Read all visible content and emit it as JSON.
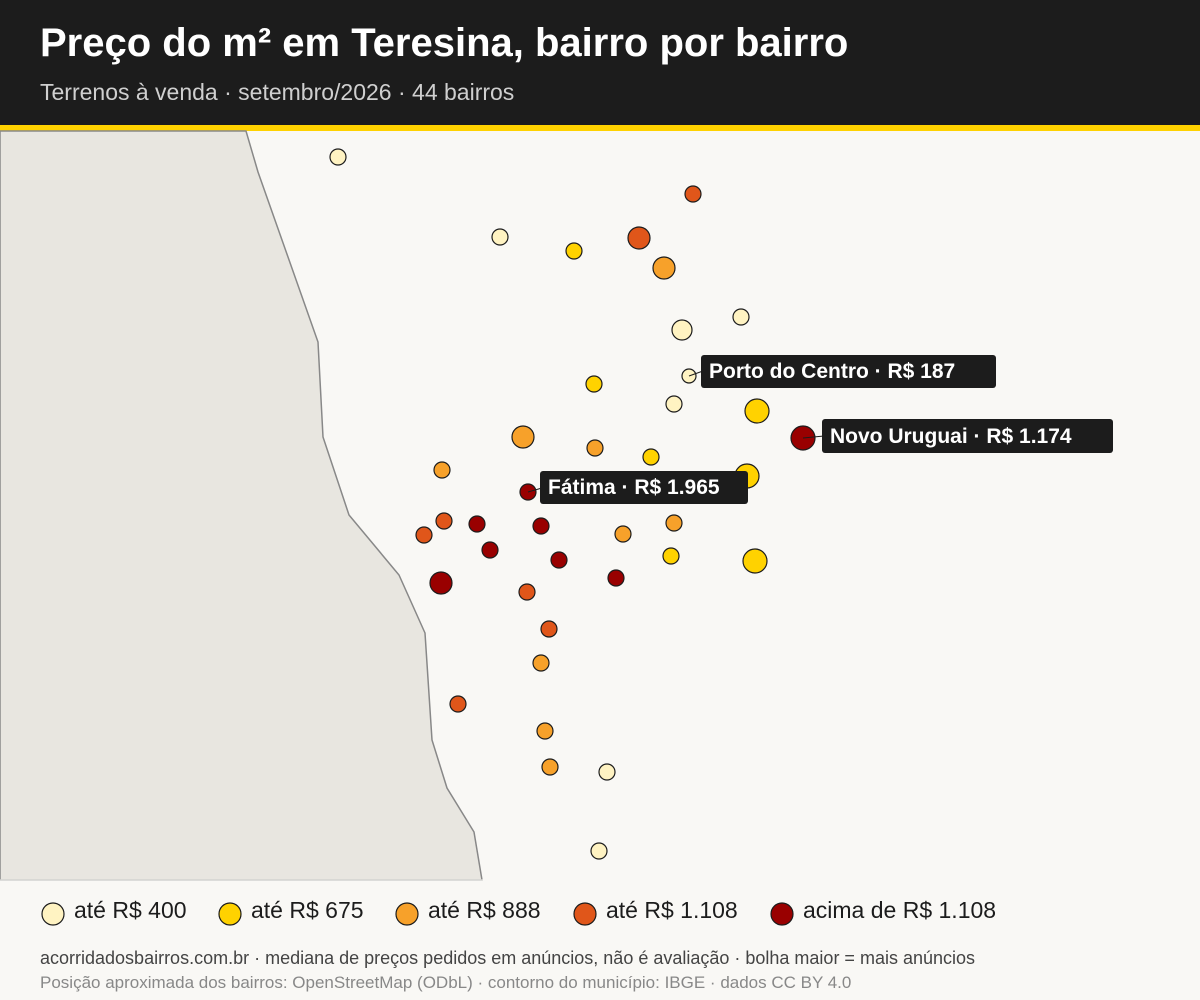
{
  "header": {
    "title": "Preço do m² em Teresina, bairro por bairro",
    "subtitle": "Terrenos à venda · setembro/2026 · 44 bairros"
  },
  "callouts": [
    {
      "text": "Porto do Centro · R$ 187"
    },
    {
      "text": "Novo Uruguai · R$ 1.174"
    },
    {
      "text": "Fátima · R$ 1.965"
    }
  ],
  "legend": [
    {
      "label": "até R$ 400",
      "color": "#fff3c2"
    },
    {
      "label": "até R$ 675",
      "color": "#ffd200"
    },
    {
      "label": "até R$ 888",
      "color": "#f7a12a"
    },
    {
      "label": "até R$ 1.108",
      "color": "#e0561a"
    },
    {
      "label": "acima de R$ 1.108",
      "color": "#990000"
    }
  ],
  "footer": {
    "line1": "acorridadosbairros.com.br · mediana de preços pedidos em anúncios, não é avaliação · bolha maior = mais anúncios",
    "line2": "Posição aproximada dos bairros: OpenStreetMap (ODbL) · contorno do município: IBGE · dados CC BY 4.0"
  }
}
